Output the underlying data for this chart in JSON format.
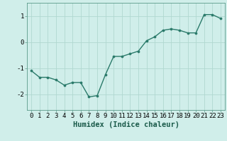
{
  "x": [
    0,
    1,
    2,
    3,
    4,
    5,
    6,
    7,
    8,
    9,
    10,
    11,
    12,
    13,
    14,
    15,
    16,
    17,
    18,
    19,
    20,
    21,
    22,
    23
  ],
  "y": [
    -1.1,
    -1.35,
    -1.35,
    -1.45,
    -1.65,
    -1.55,
    -1.55,
    -2.1,
    -2.05,
    -1.25,
    -0.55,
    -0.55,
    -0.45,
    -0.35,
    0.05,
    0.2,
    0.45,
    0.5,
    0.45,
    0.35,
    0.35,
    1.05,
    1.05,
    0.9
  ],
  "line_color": "#2a7a6a",
  "marker": "o",
  "marker_size": 2.2,
  "line_width": 1.0,
  "bg_color": "#d0eeea",
  "grid_color": "#b0d8d0",
  "xlabel": "Humidex (Indice chaleur)",
  "xlabel_fontsize": 7.5,
  "tick_fontsize": 6.5,
  "ylim": [
    -2.6,
    1.5
  ],
  "yticks": [
    -2,
    -1,
    0,
    1
  ],
  "xlim": [
    -0.5,
    23.5
  ],
  "xticks": [
    0,
    1,
    2,
    3,
    4,
    5,
    6,
    7,
    8,
    9,
    10,
    11,
    12,
    13,
    14,
    15,
    16,
    17,
    18,
    19,
    20,
    21,
    22,
    23
  ],
  "spine_color": "#5a9a8a"
}
